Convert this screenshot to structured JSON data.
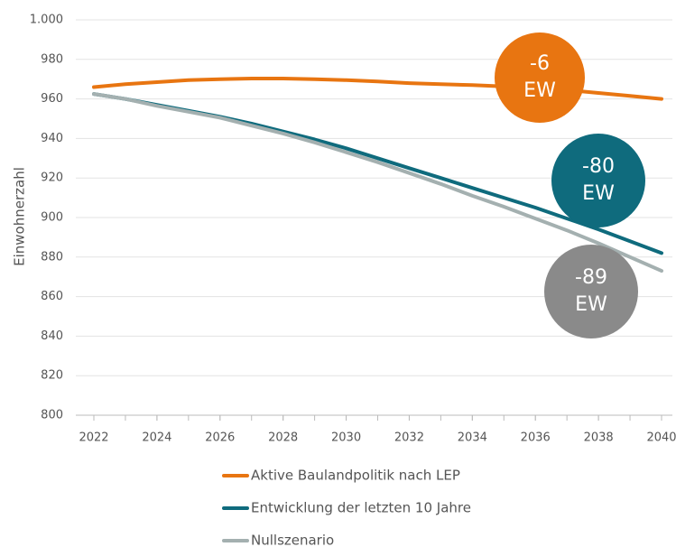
{
  "chart_data": {
    "type": "line",
    "ylabel": "Einwohnerzahl",
    "x": [
      2022,
      2023,
      2024,
      2025,
      2026,
      2027,
      2028,
      2029,
      2030,
      2031,
      2032,
      2033,
      2034,
      2035,
      2036,
      2037,
      2038,
      2039,
      2040
    ],
    "xlim": [
      2022,
      2040
    ],
    "xticks": [
      2022,
      2024,
      2026,
      2028,
      2030,
      2032,
      2034,
      2036,
      2038,
      2040
    ],
    "ylim": [
      800,
      1000
    ],
    "yticks": [
      800,
      820,
      840,
      860,
      880,
      900,
      920,
      940,
      960,
      980,
      {
        "value": 1000,
        "label": "1.000"
      }
    ],
    "grid": true,
    "legend": "bottom",
    "series": [
      {
        "name": "Aktive Baulandpolitik nach LEP",
        "color": "#e87511",
        "values": [
          966,
          967.5,
          968.5,
          969.5,
          970,
          970.3,
          970.3,
          970,
          969.5,
          968.8,
          968,
          967.5,
          967,
          966.3,
          965.5,
          964.5,
          963,
          961.5,
          960
        ]
      },
      {
        "name": "Entwicklung der letzten 10 Jahre",
        "color": "#0f6b7d",
        "values": [
          962.5,
          960,
          957,
          954,
          951,
          947.5,
          943.5,
          939.5,
          935,
          930,
          925,
          920,
          915,
          910,
          905,
          899.5,
          894,
          888,
          882
        ]
      },
      {
        "name": "Nullszenario",
        "color": "#a4b0b0",
        "values": [
          962.5,
          960,
          956.5,
          953.5,
          950.5,
          946.5,
          942.5,
          938,
          933,
          928,
          922.5,
          917,
          911,
          905.5,
          899.5,
          893.5,
          887,
          880,
          873
        ]
      }
    ],
    "annotations": [
      {
        "lines": [
          "-6",
          "EW"
        ],
        "color": "#e87511"
      },
      {
        "lines": [
          "-80",
          "EW"
        ],
        "color": "#0f6b7d"
      },
      {
        "lines": [
          "-89",
          "EW"
        ],
        "color": "#8a8a8a"
      }
    ]
  }
}
